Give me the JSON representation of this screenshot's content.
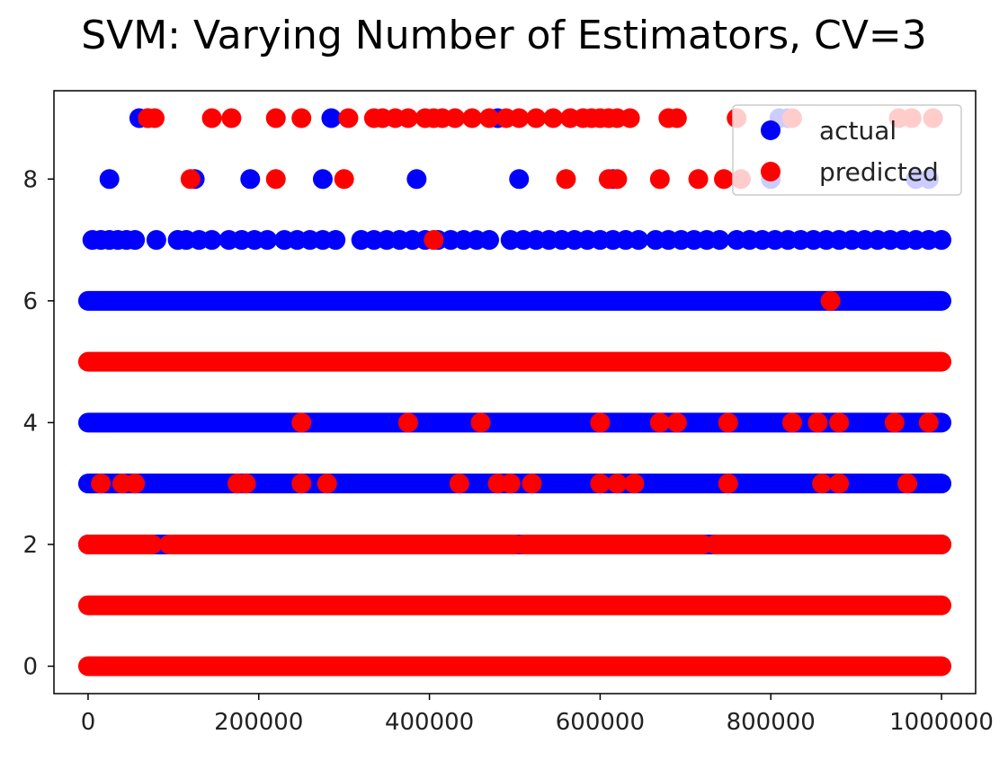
{
  "chart_data": {
    "type": "scatter",
    "title": "SVM: Varying Number of Estimators, CV=3",
    "xlabel": "",
    "ylabel": "",
    "xlim": [
      -40000,
      1040000
    ],
    "ylim": [
      -0.45,
      9.45
    ],
    "x_ticks": [
      0,
      200000,
      400000,
      600000,
      800000,
      1000000
    ],
    "x_tick_labels": [
      "0",
      "200000",
      "400000",
      "600000",
      "800000",
      "1000000"
    ],
    "y_ticks": [
      0,
      2,
      4,
      6,
      8
    ],
    "y_tick_labels": [
      "0",
      "2",
      "4",
      "6",
      "8"
    ],
    "grid": false,
    "legend_position": "top-right",
    "series": [
      {
        "name": "actual",
        "color": "#0000ff",
        "bands": [
          {
            "y": 2,
            "x_range": [
              0,
              1000000
            ]
          },
          {
            "y": 3,
            "x_range": [
              0,
              1000000
            ]
          },
          {
            "y": 4,
            "x_range": [
              0,
              1000000
            ]
          },
          {
            "y": 6,
            "x_range": [
              0,
              1000000
            ]
          }
        ],
        "points": [
          {
            "x": 5000,
            "y": 7
          },
          {
            "x": 15000,
            "y": 7
          },
          {
            "x": 25000,
            "y": 7
          },
          {
            "x": 35000,
            "y": 7
          },
          {
            "x": 45000,
            "y": 7
          },
          {
            "x": 55000,
            "y": 7
          },
          {
            "x": 80000,
            "y": 7
          },
          {
            "x": 105000,
            "y": 7
          },
          {
            "x": 115000,
            "y": 7
          },
          {
            "x": 130000,
            "y": 7
          },
          {
            "x": 145000,
            "y": 7
          },
          {
            "x": 165000,
            "y": 7
          },
          {
            "x": 180000,
            "y": 7
          },
          {
            "x": 195000,
            "y": 7
          },
          {
            "x": 210000,
            "y": 7
          },
          {
            "x": 230000,
            "y": 7
          },
          {
            "x": 245000,
            "y": 7
          },
          {
            "x": 260000,
            "y": 7
          },
          {
            "x": 275000,
            "y": 7
          },
          {
            "x": 290000,
            "y": 7
          },
          {
            "x": 320000,
            "y": 7
          },
          {
            "x": 335000,
            "y": 7
          },
          {
            "x": 350000,
            "y": 7
          },
          {
            "x": 365000,
            "y": 7
          },
          {
            "x": 380000,
            "y": 7
          },
          {
            "x": 395000,
            "y": 7
          },
          {
            "x": 410000,
            "y": 7
          },
          {
            "x": 425000,
            "y": 7
          },
          {
            "x": 440000,
            "y": 7
          },
          {
            "x": 455000,
            "y": 7
          },
          {
            "x": 470000,
            "y": 7
          },
          {
            "x": 495000,
            "y": 7
          },
          {
            "x": 510000,
            "y": 7
          },
          {
            "x": 525000,
            "y": 7
          },
          {
            "x": 540000,
            "y": 7
          },
          {
            "x": 555000,
            "y": 7
          },
          {
            "x": 570000,
            "y": 7
          },
          {
            "x": 585000,
            "y": 7
          },
          {
            "x": 600000,
            "y": 7
          },
          {
            "x": 615000,
            "y": 7
          },
          {
            "x": 630000,
            "y": 7
          },
          {
            "x": 645000,
            "y": 7
          },
          {
            "x": 665000,
            "y": 7
          },
          {
            "x": 680000,
            "y": 7
          },
          {
            "x": 695000,
            "y": 7
          },
          {
            "x": 710000,
            "y": 7
          },
          {
            "x": 725000,
            "y": 7
          },
          {
            "x": 740000,
            "y": 7
          },
          {
            "x": 760000,
            "y": 7
          },
          {
            "x": 775000,
            "y": 7
          },
          {
            "x": 790000,
            "y": 7
          },
          {
            "x": 805000,
            "y": 7
          },
          {
            "x": 820000,
            "y": 7
          },
          {
            "x": 835000,
            "y": 7
          },
          {
            "x": 850000,
            "y": 7
          },
          {
            "x": 865000,
            "y": 7
          },
          {
            "x": 880000,
            "y": 7
          },
          {
            "x": 895000,
            "y": 7
          },
          {
            "x": 910000,
            "y": 7
          },
          {
            "x": 925000,
            "y": 7
          },
          {
            "x": 940000,
            "y": 7
          },
          {
            "x": 955000,
            "y": 7
          },
          {
            "x": 970000,
            "y": 7
          },
          {
            "x": 985000,
            "y": 7
          },
          {
            "x": 1000000,
            "y": 7
          },
          {
            "x": 25000,
            "y": 8
          },
          {
            "x": 125000,
            "y": 8
          },
          {
            "x": 190000,
            "y": 8
          },
          {
            "x": 275000,
            "y": 8
          },
          {
            "x": 385000,
            "y": 8
          },
          {
            "x": 505000,
            "y": 8
          },
          {
            "x": 615000,
            "y": 8
          },
          {
            "x": 800000,
            "y": 8
          },
          {
            "x": 970000,
            "y": 8
          },
          {
            "x": 985000,
            "y": 8
          },
          {
            "x": 60000,
            "y": 9
          },
          {
            "x": 70000,
            "y": 9
          },
          {
            "x": 285000,
            "y": 9
          },
          {
            "x": 480000,
            "y": 9
          },
          {
            "x": 810000,
            "y": 9
          },
          {
            "x": 820000,
            "y": 9
          }
        ]
      },
      {
        "name": "predicted",
        "color": "#ff0000",
        "bands": [
          {
            "y": 0,
            "x_range": [
              0,
              1000000
            ]
          },
          {
            "y": 1,
            "x_range": [
              0,
              1000000
            ]
          },
          {
            "y": 5,
            "x_range": [
              0,
              1000000
            ]
          },
          {
            "y": 2,
            "x_range": [
              0,
              75000
            ]
          },
          {
            "y": 2,
            "x_range": [
              95000,
              500000
            ]
          },
          {
            "y": 2,
            "x_range": [
              510000,
              720000
            ]
          },
          {
            "y": 2,
            "x_range": [
              735000,
              1000000
            ]
          }
        ],
        "points": [
          {
            "x": 70000,
            "y": 9
          },
          {
            "x": 78000,
            "y": 9
          },
          {
            "x": 145000,
            "y": 9
          },
          {
            "x": 168000,
            "y": 9
          },
          {
            "x": 220000,
            "y": 9
          },
          {
            "x": 250000,
            "y": 9
          },
          {
            "x": 305000,
            "y": 9
          },
          {
            "x": 335000,
            "y": 9
          },
          {
            "x": 345000,
            "y": 9
          },
          {
            "x": 360000,
            "y": 9
          },
          {
            "x": 375000,
            "y": 9
          },
          {
            "x": 395000,
            "y": 9
          },
          {
            "x": 405000,
            "y": 9
          },
          {
            "x": 415000,
            "y": 9
          },
          {
            "x": 430000,
            "y": 9
          },
          {
            "x": 450000,
            "y": 9
          },
          {
            "x": 470000,
            "y": 9
          },
          {
            "x": 490000,
            "y": 9
          },
          {
            "x": 505000,
            "y": 9
          },
          {
            "x": 525000,
            "y": 9
          },
          {
            "x": 545000,
            "y": 9
          },
          {
            "x": 565000,
            "y": 9
          },
          {
            "x": 580000,
            "y": 9
          },
          {
            "x": 590000,
            "y": 9
          },
          {
            "x": 600000,
            "y": 9
          },
          {
            "x": 610000,
            "y": 9
          },
          {
            "x": 620000,
            "y": 9
          },
          {
            "x": 635000,
            "y": 9
          },
          {
            "x": 680000,
            "y": 9
          },
          {
            "x": 690000,
            "y": 9
          },
          {
            "x": 760000,
            "y": 9
          },
          {
            "x": 825000,
            "y": 9
          },
          {
            "x": 950000,
            "y": 9
          },
          {
            "x": 965000,
            "y": 9
          },
          {
            "x": 990000,
            "y": 9
          },
          {
            "x": 120000,
            "y": 8
          },
          {
            "x": 220000,
            "y": 8
          },
          {
            "x": 300000,
            "y": 8
          },
          {
            "x": 560000,
            "y": 8
          },
          {
            "x": 610000,
            "y": 8
          },
          {
            "x": 620000,
            "y": 8
          },
          {
            "x": 670000,
            "y": 8
          },
          {
            "x": 715000,
            "y": 8
          },
          {
            "x": 745000,
            "y": 8
          },
          {
            "x": 765000,
            "y": 8
          },
          {
            "x": 405000,
            "y": 7
          },
          {
            "x": 870000,
            "y": 6
          },
          {
            "x": 250000,
            "y": 4
          },
          {
            "x": 375000,
            "y": 4
          },
          {
            "x": 460000,
            "y": 4
          },
          {
            "x": 600000,
            "y": 4
          },
          {
            "x": 670000,
            "y": 4
          },
          {
            "x": 690000,
            "y": 4
          },
          {
            "x": 750000,
            "y": 4
          },
          {
            "x": 825000,
            "y": 4
          },
          {
            "x": 855000,
            "y": 4
          },
          {
            "x": 880000,
            "y": 4
          },
          {
            "x": 945000,
            "y": 4
          },
          {
            "x": 985000,
            "y": 4
          },
          {
            "x": 15000,
            "y": 3
          },
          {
            "x": 40000,
            "y": 3
          },
          {
            "x": 55000,
            "y": 3
          },
          {
            "x": 175000,
            "y": 3
          },
          {
            "x": 185000,
            "y": 3
          },
          {
            "x": 250000,
            "y": 3
          },
          {
            "x": 280000,
            "y": 3
          },
          {
            "x": 435000,
            "y": 3
          },
          {
            "x": 480000,
            "y": 3
          },
          {
            "x": 495000,
            "y": 3
          },
          {
            "x": 520000,
            "y": 3
          },
          {
            "x": 600000,
            "y": 3
          },
          {
            "x": 620000,
            "y": 3
          },
          {
            "x": 640000,
            "y": 3
          },
          {
            "x": 750000,
            "y": 3
          },
          {
            "x": 860000,
            "y": 3
          },
          {
            "x": 880000,
            "y": 3
          },
          {
            "x": 960000,
            "y": 3
          },
          {
            "x": 55000,
            "y": 2
          }
        ]
      }
    ]
  }
}
